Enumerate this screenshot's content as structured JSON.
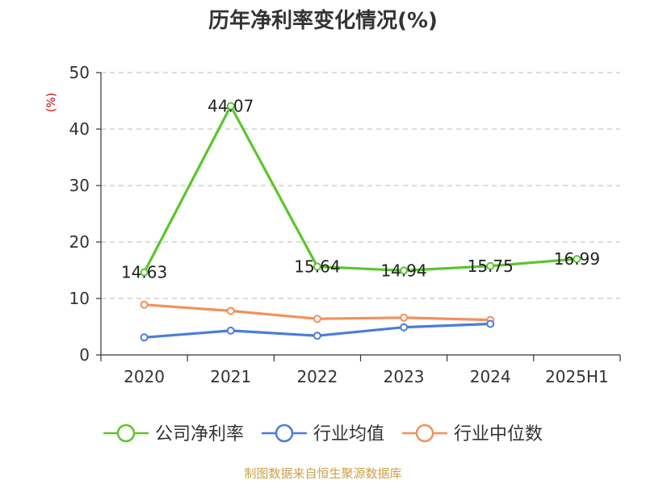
{
  "chart_data": {
    "type": "line",
    "title": "历年净利率变化情况(%)",
    "ylabel": "(%)",
    "xlabel": "",
    "categories": [
      "2020",
      "2021",
      "2022",
      "2023",
      "2024",
      "2025H1"
    ],
    "ylim": [
      0,
      50
    ],
    "yticks": [
      0,
      10,
      20,
      30,
      40,
      50
    ],
    "grid": true,
    "legend_position": "bottom",
    "series": [
      {
        "name": "公司净利率",
        "color": "#5cc52f",
        "values": [
          14.63,
          44.07,
          15.64,
          14.94,
          15.75,
          16.99
        ],
        "labels": [
          "14.63",
          "44.07",
          "15.64",
          "14.94",
          "15.75",
          "16.99"
        ]
      },
      {
        "name": "行业均值",
        "color": "#4a7ddb",
        "values": [
          3.1,
          4.3,
          3.4,
          4.9,
          5.5,
          null
        ]
      },
      {
        "name": "行业中位数",
        "color": "#f58f5b",
        "values": [
          8.9,
          7.8,
          6.4,
          6.6,
          6.2,
          null
        ]
      }
    ]
  },
  "source": "制图数据来自恒生聚源数据库"
}
